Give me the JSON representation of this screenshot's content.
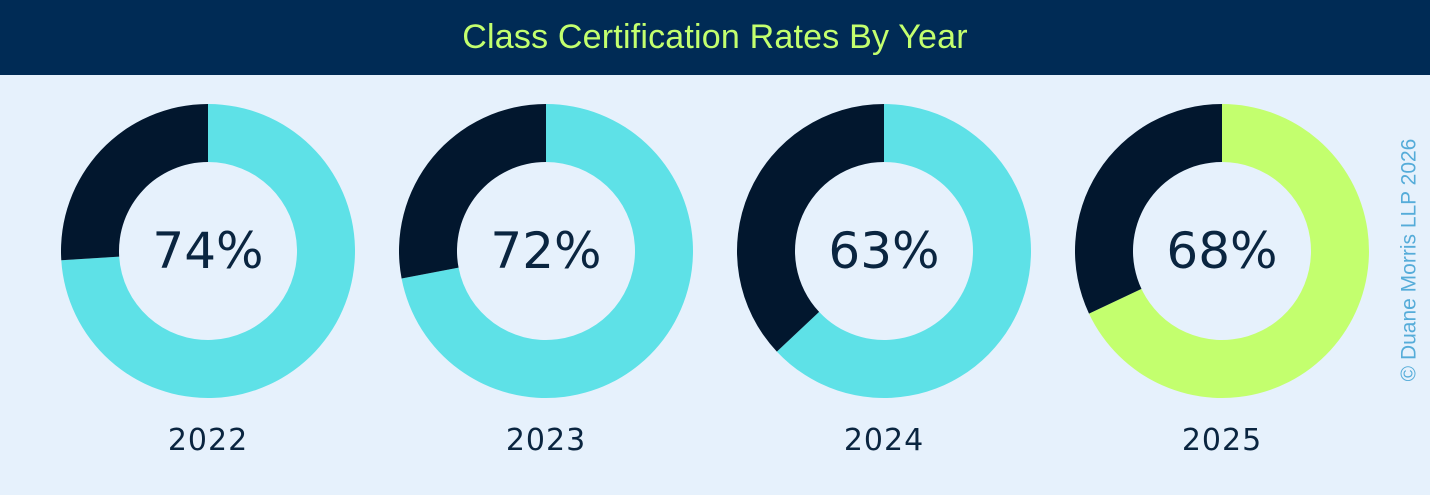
{
  "header": {
    "title": "Class Certification Rates By Year"
  },
  "copyright": "© Duane Morris LLP 2026",
  "colors": {
    "header_bg": "#002b55",
    "title_text": "#c3ff6e",
    "background": "#e6f1fc",
    "remainder": "#02172e",
    "cyan": "#5ee1e7",
    "lime": "#c3ff6e",
    "label_text": "#0a2540"
  },
  "chart_data": {
    "type": "pie",
    "variant": "donut",
    "title": "Class Certification Rates By Year",
    "items": [
      {
        "year": "2022",
        "value": 74,
        "label": "74%",
        "color": "#5ee1e7"
      },
      {
        "year": "2023",
        "value": 72,
        "label": "72%",
        "color": "#5ee1e7"
      },
      {
        "year": "2024",
        "value": 63,
        "label": "63%",
        "color": "#5ee1e7"
      },
      {
        "year": "2025",
        "value": 68,
        "label": "68%",
        "color": "#c3ff6e"
      }
    ],
    "remainder_color": "#02172e"
  }
}
